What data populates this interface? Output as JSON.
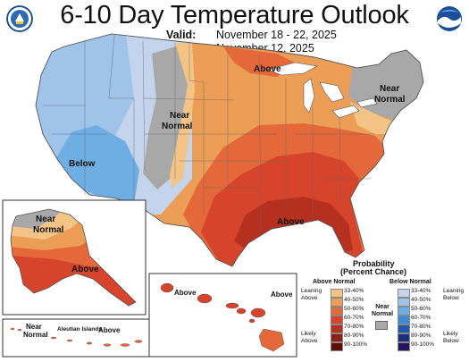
{
  "header": {
    "title": "6-10 Day Temperature Outlook",
    "valid_label": "Valid:",
    "valid_value": "November 18 - 22, 2025",
    "issued_label": "Issued:",
    "issued_value": "November 12, 2025"
  },
  "logos": {
    "left": "doc-seal-icon",
    "right": "noaa-logo-icon"
  },
  "map_labels": {
    "above_north": "Above",
    "near_normal_northeast": [
      "Near",
      "Normal"
    ],
    "near_normal_plains": [
      "Near",
      "Normal"
    ],
    "below_west": "Below",
    "above_south": "Above",
    "alaska_near_normal": [
      "Near",
      "Normal"
    ],
    "alaska_above": "Above",
    "hawaii_above": "Above",
    "aleutian_near": [
      "Near",
      "Normal"
    ],
    "aleutian_islands": "Aleutian Islands",
    "aleutian_above": "Above"
  },
  "legend": {
    "title": "Probability",
    "subtitle": "(Percent Chance)",
    "above_header": "Above Normal",
    "below_header": "Below Normal",
    "near_label": [
      "Near",
      "Normal"
    ],
    "leaning_above": [
      "Leaning",
      "Above"
    ],
    "likely_above": [
      "Likely",
      "Above"
    ],
    "leaning_below": [
      "Leaning",
      "Below"
    ],
    "likely_below": [
      "Likely",
      "Below"
    ],
    "above_bins": [
      {
        "label": "33-40%",
        "color": "#f3c486"
      },
      {
        "label": "40-50%",
        "color": "#ec9e57"
      },
      {
        "label": "50-60%",
        "color": "#e4683a"
      },
      {
        "label": "60-70%",
        "color": "#d6442b"
      },
      {
        "label": "70-80%",
        "color": "#b5301f"
      },
      {
        "label": "80-90%",
        "color": "#8e1f14"
      },
      {
        "label": "90-100%",
        "color": "#5c1108"
      }
    ],
    "below_bins": [
      {
        "label": "33-40%",
        "color": "#c3d4ec"
      },
      {
        "label": "40-50%",
        "color": "#9fc3e9"
      },
      {
        "label": "50-60%",
        "color": "#6eaee3"
      },
      {
        "label": "60-70%",
        "color": "#3f8ad4"
      },
      {
        "label": "70-80%",
        "color": "#1e5aa8"
      },
      {
        "label": "80-90%",
        "color": "#1b2f7e"
      },
      {
        "label": "90-100%",
        "color": "#24145e"
      }
    ],
    "near_color": "#a8a8a8"
  }
}
